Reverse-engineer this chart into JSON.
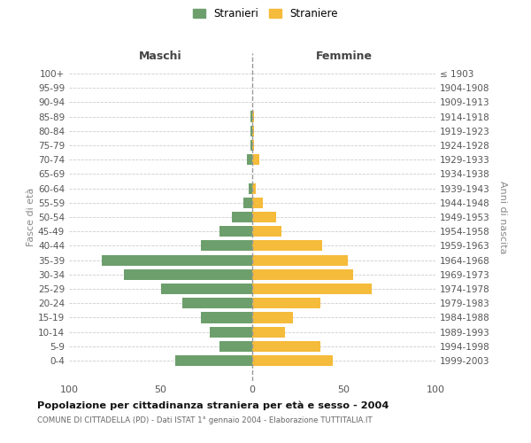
{
  "age_groups": [
    "100+",
    "95-99",
    "90-94",
    "85-89",
    "80-84",
    "75-79",
    "70-74",
    "65-69",
    "60-64",
    "55-59",
    "50-54",
    "45-49",
    "40-44",
    "35-39",
    "30-34",
    "25-29",
    "20-24",
    "15-19",
    "10-14",
    "5-9",
    "0-4"
  ],
  "birth_years": [
    "≤ 1903",
    "1904-1908",
    "1909-1913",
    "1914-1918",
    "1919-1923",
    "1924-1928",
    "1929-1933",
    "1934-1938",
    "1939-1943",
    "1944-1948",
    "1949-1953",
    "1954-1958",
    "1959-1963",
    "1964-1968",
    "1969-1973",
    "1974-1978",
    "1979-1983",
    "1984-1988",
    "1989-1993",
    "1994-1998",
    "1999-2003"
  ],
  "maschi": [
    0,
    0,
    0,
    1,
    1,
    1,
    3,
    0,
    2,
    5,
    11,
    18,
    28,
    82,
    70,
    50,
    38,
    28,
    23,
    18,
    42
  ],
  "femmine": [
    0,
    0,
    0,
    1,
    1,
    1,
    4,
    0,
    2,
    6,
    13,
    16,
    38,
    52,
    55,
    65,
    37,
    22,
    18,
    37,
    44
  ],
  "male_color": "#6d9f6d",
  "female_color": "#f5bb3a",
  "title": "Popolazione per cittadinanza straniera per età e sesso - 2004",
  "subtitle": "COMUNE DI CITTADELLA (PD) - Dati ISTAT 1° gennaio 2004 - Elaborazione TUTTITALIA.IT",
  "xlabel_left": "Maschi",
  "xlabel_right": "Femmine",
  "ylabel_left": "Fasce di età",
  "ylabel_right": "Anni di nascita",
  "xlim": 100,
  "legend_stranieri": "Stranieri",
  "legend_straniere": "Straniere",
  "background_color": "#ffffff",
  "grid_color": "#cccccc"
}
